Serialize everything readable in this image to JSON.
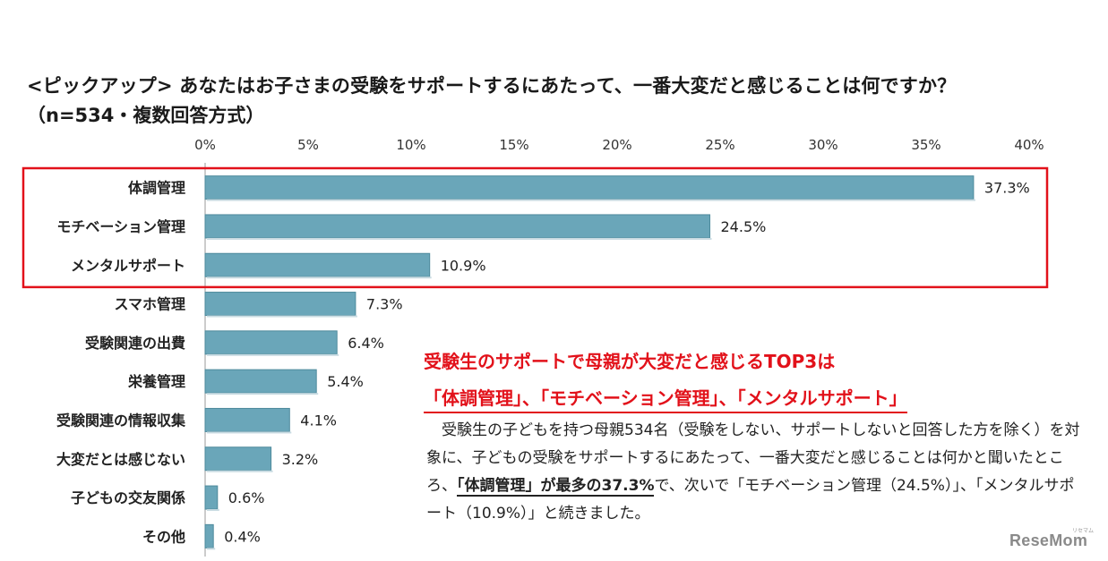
{
  "title": {
    "line1": "<ピックアップ> あなたはお子さまの受験をサポートするにあたって、一番大変だと感じることは何ですか？",
    "line2": "（n=534・複数回答方式）"
  },
  "chart_data": {
    "type": "bar",
    "orientation": "horizontal",
    "categories": [
      "体調管理",
      "モチベーション管理",
      "メンタルサポート",
      "スマホ管理",
      "受験関連の出費",
      "栄養管理",
      "受験関連の情報収集",
      "大変だとは感じない",
      "子どもの交友関係",
      "その他"
    ],
    "values": [
      37.3,
      24.5,
      10.9,
      7.3,
      6.4,
      5.4,
      4.1,
      3.2,
      0.6,
      0.4
    ],
    "value_labels": [
      "37.3%",
      "24.5%",
      "10.9%",
      "7.3%",
      "6.4%",
      "5.4%",
      "4.1%",
      "3.2%",
      "0.6%",
      "0.4%"
    ],
    "xlim": [
      0,
      40
    ],
    "x_ticks": [
      "0%",
      "5%",
      "10%",
      "15%",
      "20%",
      "25%",
      "30%",
      "35%",
      "40%"
    ],
    "x_axis_position": "top",
    "grid": false,
    "highlight_top_n": 3,
    "bar_color": "#6aa6b9",
    "highlight_color": "#e2111a"
  },
  "callout": {
    "heading": "受験生のサポートで母親が大変だと感じるTOP3は",
    "subheading": "「体調管理」、「モチベーション管理」、「メンタルサポート」"
  },
  "body": {
    "part1": "　受験生の子どもを持つ母親534名（受験をしない、サポートしないと回答した方を除く）を対象に、子どもの受験をサポートするにあたって、一番大変だと感じることは何かと聞いたところ、",
    "emphasis": "「体調管理」が最多の37.3%",
    "part2": "で、次いで「モチベーション管理（24.5%）」、「メンタルサポート（10.9%）」と続きました。"
  },
  "logo": {
    "text": "ReseMom",
    "sup": "リセマム"
  }
}
